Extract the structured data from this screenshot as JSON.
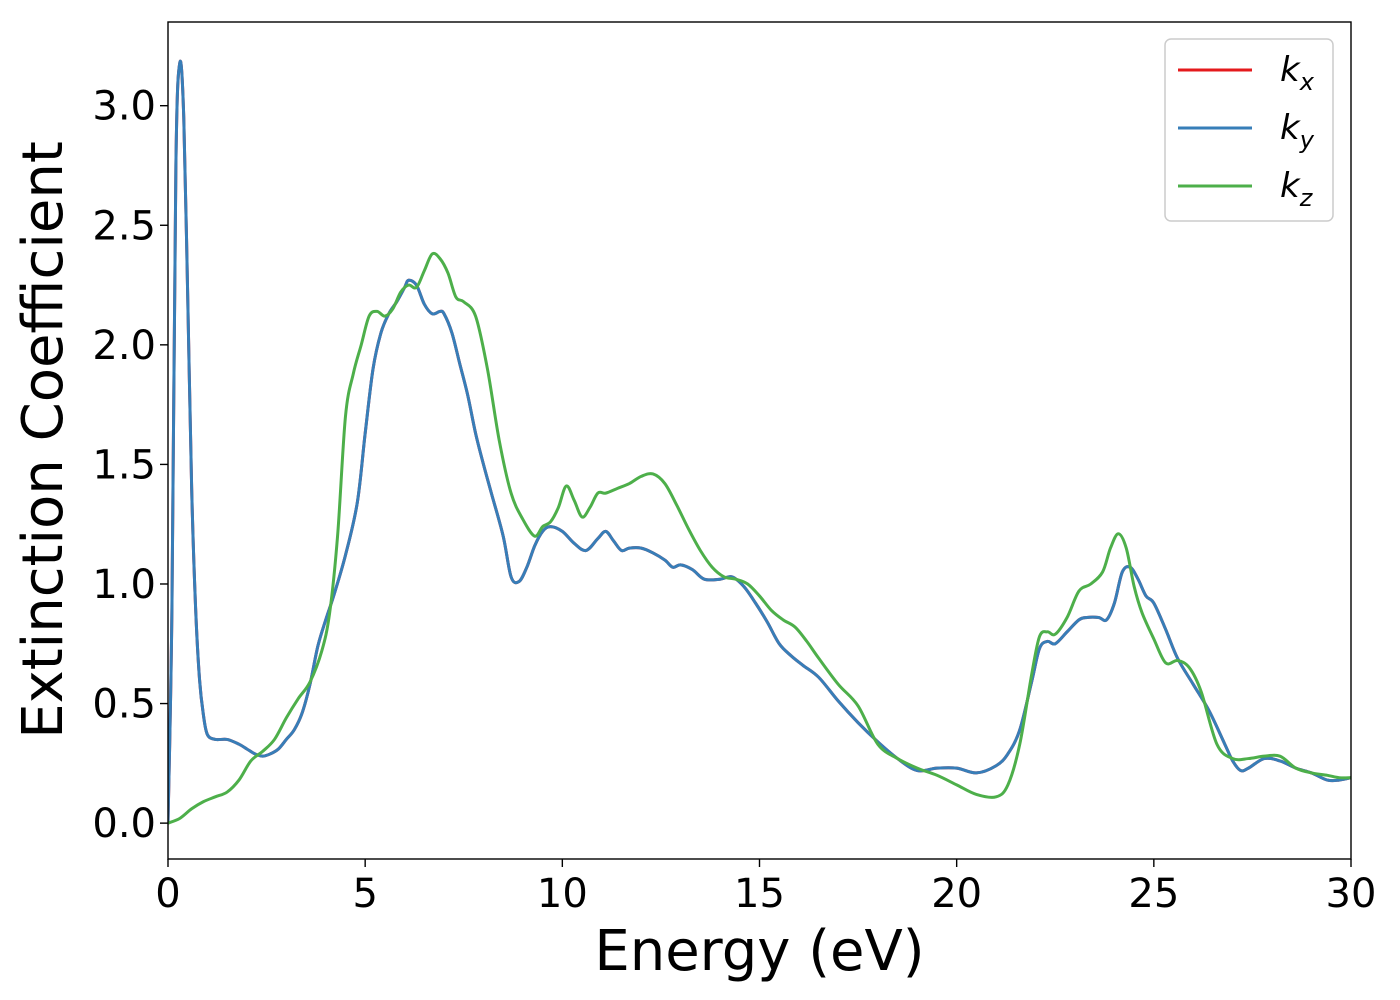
{
  "chart_data": {
    "type": "line",
    "title": "",
    "xlabel": "Energy (eV)",
    "ylabel": "Extinction Coefficient",
    "xlim": [
      0,
      30
    ],
    "ylim": [
      -0.15,
      3.35
    ],
    "x_ticks": [
      0,
      5,
      10,
      15,
      20,
      25,
      30
    ],
    "x_tick_labels": [
      "0",
      "5",
      "10",
      "15",
      "20",
      "25",
      "30"
    ],
    "y_ticks": [
      0.0,
      0.5,
      1.0,
      1.5,
      2.0,
      2.5,
      3.0
    ],
    "y_tick_labels": [
      "0.0",
      "0.5",
      "1.0",
      "1.5",
      "2.0",
      "2.5",
      "3.0"
    ],
    "grid": false,
    "legend_position": "top-right",
    "legend": [
      {
        "base": "k",
        "sub": "x",
        "color": "#e41a1c"
      },
      {
        "base": "k",
        "sub": "y",
        "color": "#377eb8"
      },
      {
        "base": "k",
        "sub": "z",
        "color": "#4daf4a"
      }
    ],
    "series": [
      {
        "name": "kx",
        "color": "#e41a1c",
        "x": [
          0,
          0.1,
          0.2,
          0.3,
          0.4,
          0.5,
          0.6,
          0.7,
          0.8,
          0.9,
          1.0,
          1.2,
          1.5,
          1.8,
          2.0,
          2.2,
          2.4,
          2.6,
          2.8,
          3.0,
          3.2,
          3.4,
          3.6,
          3.8,
          4.0,
          4.2,
          4.5,
          4.8,
          5.0,
          5.2,
          5.4,
          5.6,
          5.8,
          6.0,
          6.1,
          6.3,
          6.5,
          6.7,
          6.9,
          7.0,
          7.2,
          7.4,
          7.6,
          7.8,
          8.0,
          8.2,
          8.5,
          8.7,
          8.9,
          9.1,
          9.3,
          9.5,
          9.7,
          10.0,
          10.3,
          10.6,
          10.9,
          11.1,
          11.3,
          11.5,
          11.7,
          12.0,
          12.3,
          12.6,
          12.8,
          13.0,
          13.3,
          13.6,
          14.0,
          14.3,
          14.6,
          14.9,
          15.2,
          15.5,
          15.8,
          16.1,
          16.5,
          17.0,
          17.5,
          18.0,
          18.5,
          19.0,
          19.5,
          20.0,
          20.5,
          21.0,
          21.3,
          21.6,
          21.9,
          22.1,
          22.3,
          22.5,
          22.8,
          23.1,
          23.3,
          23.6,
          23.8,
          24.0,
          24.2,
          24.4,
          24.6,
          24.8,
          25.0,
          25.3,
          25.6,
          26.0,
          26.4,
          26.8,
          27.0,
          27.2,
          27.4,
          27.8,
          28.2,
          28.6,
          29.0,
          29.4,
          29.7,
          30.0
        ],
        "values": [
          0.0,
          0.9,
          2.75,
          3.18,
          2.95,
          2.2,
          1.4,
          0.9,
          0.6,
          0.45,
          0.37,
          0.35,
          0.35,
          0.33,
          0.31,
          0.29,
          0.28,
          0.29,
          0.31,
          0.35,
          0.39,
          0.46,
          0.58,
          0.74,
          0.85,
          0.95,
          1.12,
          1.34,
          1.63,
          1.9,
          2.05,
          2.13,
          2.18,
          2.24,
          2.27,
          2.25,
          2.17,
          2.13,
          2.14,
          2.13,
          2.05,
          1.92,
          1.79,
          1.63,
          1.5,
          1.38,
          1.2,
          1.03,
          1.01,
          1.07,
          1.16,
          1.22,
          1.24,
          1.22,
          1.17,
          1.14,
          1.19,
          1.22,
          1.18,
          1.14,
          1.15,
          1.15,
          1.13,
          1.1,
          1.07,
          1.08,
          1.06,
          1.02,
          1.02,
          1.03,
          0.99,
          0.92,
          0.84,
          0.75,
          0.7,
          0.66,
          0.61,
          0.51,
          0.42,
          0.34,
          0.27,
          0.22,
          0.23,
          0.23,
          0.21,
          0.24,
          0.29,
          0.39,
          0.59,
          0.73,
          0.76,
          0.75,
          0.8,
          0.85,
          0.86,
          0.86,
          0.85,
          0.92,
          1.05,
          1.07,
          1.02,
          0.95,
          0.92,
          0.81,
          0.69,
          0.58,
          0.47,
          0.33,
          0.26,
          0.22,
          0.23,
          0.27,
          0.26,
          0.23,
          0.21,
          0.18,
          0.18,
          0.19
        ]
      },
      {
        "name": "ky",
        "color": "#377eb8",
        "x": [
          0,
          0.1,
          0.2,
          0.3,
          0.4,
          0.5,
          0.6,
          0.7,
          0.8,
          0.9,
          1.0,
          1.2,
          1.5,
          1.8,
          2.0,
          2.2,
          2.4,
          2.6,
          2.8,
          3.0,
          3.2,
          3.4,
          3.6,
          3.8,
          4.0,
          4.2,
          4.5,
          4.8,
          5.0,
          5.2,
          5.4,
          5.6,
          5.8,
          6.0,
          6.1,
          6.3,
          6.5,
          6.7,
          6.9,
          7.0,
          7.2,
          7.4,
          7.6,
          7.8,
          8.0,
          8.2,
          8.5,
          8.7,
          8.9,
          9.1,
          9.3,
          9.5,
          9.7,
          10.0,
          10.3,
          10.6,
          10.9,
          11.1,
          11.3,
          11.5,
          11.7,
          12.0,
          12.3,
          12.6,
          12.8,
          13.0,
          13.3,
          13.6,
          14.0,
          14.3,
          14.6,
          14.9,
          15.2,
          15.5,
          15.8,
          16.1,
          16.5,
          17.0,
          17.5,
          18.0,
          18.5,
          19.0,
          19.5,
          20.0,
          20.5,
          21.0,
          21.3,
          21.6,
          21.9,
          22.1,
          22.3,
          22.5,
          22.8,
          23.1,
          23.3,
          23.6,
          23.8,
          24.0,
          24.2,
          24.4,
          24.6,
          24.8,
          25.0,
          25.3,
          25.6,
          26.0,
          26.4,
          26.8,
          27.0,
          27.2,
          27.4,
          27.8,
          28.2,
          28.6,
          29.0,
          29.4,
          29.7,
          30.0
        ],
        "values": [
          0.0,
          0.9,
          2.75,
          3.18,
          2.95,
          2.2,
          1.4,
          0.9,
          0.6,
          0.45,
          0.37,
          0.35,
          0.35,
          0.33,
          0.31,
          0.29,
          0.28,
          0.29,
          0.31,
          0.35,
          0.39,
          0.46,
          0.58,
          0.74,
          0.85,
          0.95,
          1.12,
          1.34,
          1.63,
          1.9,
          2.05,
          2.13,
          2.18,
          2.24,
          2.27,
          2.25,
          2.17,
          2.13,
          2.14,
          2.13,
          2.05,
          1.92,
          1.79,
          1.63,
          1.5,
          1.38,
          1.2,
          1.03,
          1.01,
          1.07,
          1.16,
          1.22,
          1.24,
          1.22,
          1.17,
          1.14,
          1.19,
          1.22,
          1.18,
          1.14,
          1.15,
          1.15,
          1.13,
          1.1,
          1.07,
          1.08,
          1.06,
          1.02,
          1.02,
          1.03,
          0.99,
          0.92,
          0.84,
          0.75,
          0.7,
          0.66,
          0.61,
          0.51,
          0.42,
          0.34,
          0.27,
          0.22,
          0.23,
          0.23,
          0.21,
          0.24,
          0.29,
          0.39,
          0.59,
          0.73,
          0.76,
          0.75,
          0.8,
          0.85,
          0.86,
          0.86,
          0.85,
          0.92,
          1.05,
          1.07,
          1.02,
          0.95,
          0.92,
          0.81,
          0.69,
          0.58,
          0.47,
          0.33,
          0.26,
          0.22,
          0.23,
          0.27,
          0.26,
          0.23,
          0.21,
          0.18,
          0.18,
          0.19
        ]
      },
      {
        "name": "kz",
        "color": "#4daf4a",
        "x": [
          0,
          0.3,
          0.6,
          0.9,
          1.2,
          1.5,
          1.8,
          2.1,
          2.4,
          2.7,
          3.0,
          3.3,
          3.6,
          3.9,
          4.1,
          4.3,
          4.5,
          4.7,
          4.9,
          5.1,
          5.3,
          5.5,
          5.7,
          5.9,
          6.1,
          6.3,
          6.5,
          6.7,
          6.9,
          7.1,
          7.3,
          7.5,
          7.8,
          8.1,
          8.4,
          8.7,
          9.0,
          9.3,
          9.5,
          9.7,
          9.9,
          10.1,
          10.3,
          10.5,
          10.7,
          10.9,
          11.1,
          11.4,
          11.7,
          12.0,
          12.3,
          12.6,
          12.9,
          13.2,
          13.5,
          13.8,
          14.1,
          14.4,
          14.7,
          15.0,
          15.3,
          15.6,
          15.9,
          16.2,
          16.5,
          17.0,
          17.5,
          18.0,
          18.5,
          19.0,
          19.5,
          20.0,
          20.5,
          21.0,
          21.3,
          21.6,
          21.9,
          22.1,
          22.3,
          22.5,
          22.8,
          23.1,
          23.4,
          23.7,
          23.9,
          24.1,
          24.3,
          24.5,
          24.7,
          25.0,
          25.3,
          25.6,
          25.9,
          26.2,
          26.6,
          27.0,
          27.4,
          27.8,
          28.2,
          28.6,
          29.0,
          29.4,
          29.7,
          30.0
        ],
        "values": [
          0.0,
          0.02,
          0.06,
          0.09,
          0.11,
          0.13,
          0.18,
          0.26,
          0.3,
          0.35,
          0.44,
          0.52,
          0.59,
          0.72,
          0.88,
          1.2,
          1.7,
          1.88,
          2.0,
          2.12,
          2.14,
          2.12,
          2.15,
          2.22,
          2.25,
          2.24,
          2.31,
          2.38,
          2.36,
          2.3,
          2.2,
          2.18,
          2.12,
          1.9,
          1.6,
          1.38,
          1.27,
          1.2,
          1.24,
          1.26,
          1.32,
          1.41,
          1.35,
          1.28,
          1.32,
          1.38,
          1.38,
          1.4,
          1.42,
          1.45,
          1.46,
          1.42,
          1.33,
          1.23,
          1.14,
          1.07,
          1.03,
          1.02,
          1.0,
          0.95,
          0.89,
          0.85,
          0.82,
          0.76,
          0.69,
          0.58,
          0.49,
          0.33,
          0.27,
          0.23,
          0.2,
          0.16,
          0.12,
          0.11,
          0.16,
          0.33,
          0.62,
          0.78,
          0.8,
          0.79,
          0.86,
          0.97,
          1.0,
          1.05,
          1.15,
          1.21,
          1.15,
          0.99,
          0.88,
          0.77,
          0.67,
          0.68,
          0.65,
          0.55,
          0.33,
          0.27,
          0.27,
          0.28,
          0.28,
          0.23,
          0.21,
          0.2,
          0.19,
          0.19
        ]
      }
    ]
  }
}
